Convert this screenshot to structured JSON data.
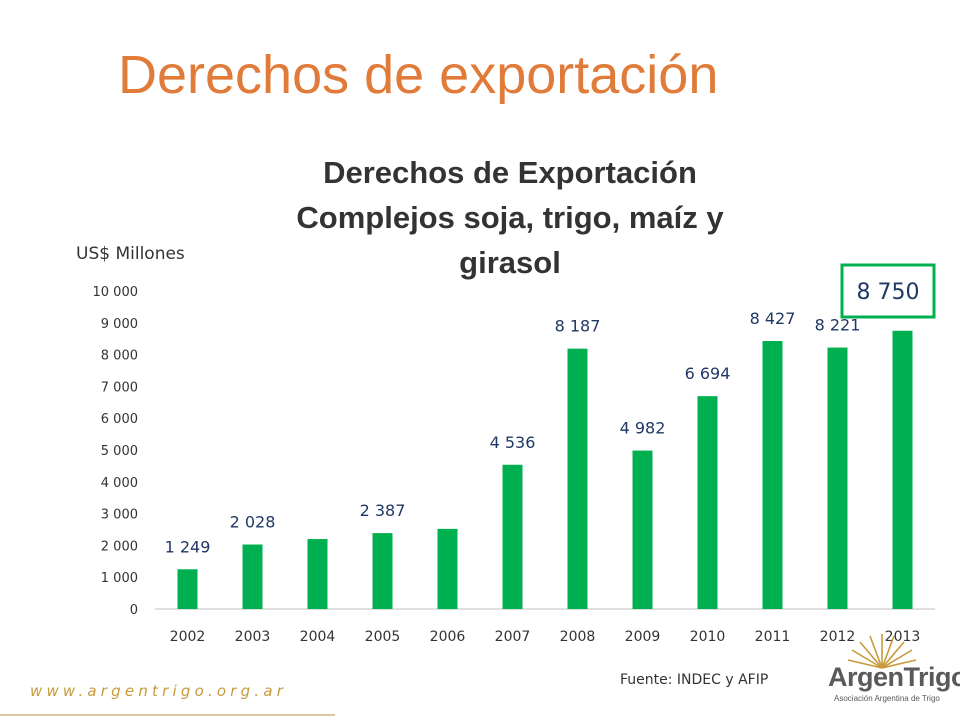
{
  "slide_title": "Derechos de exportación",
  "unit_label": "US$ Millones",
  "source": "Fuente: INDEC y AFIP",
  "website": "www.argentrigo.org.ar",
  "logo": {
    "name": "ArgenTrigo",
    "subtitle": "Asociación Argentina de Trigo"
  },
  "colors": {
    "bar": "#00B050",
    "highlight_box": "#00B050",
    "title": "#E07B39",
    "data_label": "#1F3864"
  },
  "chart_data": {
    "type": "bar",
    "title": "Derechos de Exportación Complejos soja, trigo, maíz y girasol",
    "title_lines": [
      "Derechos de Exportación",
      "Complejos soja, trigo, maíz y",
      "girasol"
    ],
    "xlabel": "",
    "ylabel": "",
    "categories": [
      "2002",
      "2003",
      "2004",
      "2005",
      "2006",
      "2007",
      "2008",
      "2009",
      "2010",
      "2011",
      "2012",
      "2013"
    ],
    "values": [
      1249,
      2028,
      2200,
      2387,
      2520,
      4536,
      8187,
      4982,
      6694,
      8427,
      8221,
      8750
    ],
    "data_labels": [
      "1 249",
      "2 028",
      "",
      "2 387",
      "",
      "4 536",
      "8 187",
      "4 982",
      "6 694",
      "8 427",
      "8 221",
      "8 750"
    ],
    "highlighted_label": "8 750",
    "ylim": [
      0,
      10000
    ],
    "yticks": [
      0,
      1000,
      2000,
      3000,
      4000,
      5000,
      6000,
      7000,
      8000,
      9000,
      10000
    ],
    "ytick_labels": [
      "0",
      "1 000",
      "2 000",
      "3 000",
      "4 000",
      "5 000",
      "6 000",
      "7 000",
      "8 000",
      "9 000",
      "10 000"
    ],
    "grid": false,
    "legend": "none"
  }
}
